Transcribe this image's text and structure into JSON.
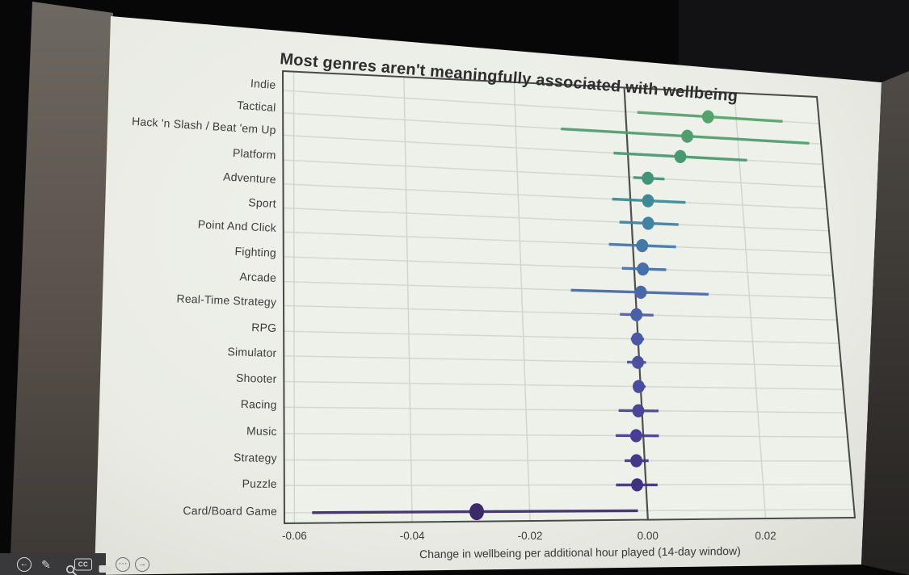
{
  "chart_data": {
    "type": "scatter",
    "style": "forest-dot-interval",
    "orientation": "horizontal",
    "title": "Most genres aren't meaningfully associated with wellbeing",
    "xlabel": "Change in wellbeing per additional hour played (14-day window)",
    "xlim": [
      -0.0614,
      0.0355
    ],
    "grid": true,
    "zero_line": 0,
    "xticks": [
      -0.06,
      -0.04,
      -0.02,
      0.0,
      0.02
    ],
    "xtick_labels": [
      "-0.06",
      "-0.04",
      "-0.02",
      "0.00",
      "0.02"
    ],
    "categories": [
      "Indie",
      "Tactical",
      "Hack 'n Slash / Beat 'em Up",
      "Platform",
      "Adventure",
      "Sport",
      "Point And Click",
      "Fighting",
      "Arcade",
      "Real-Time Strategy",
      "RPG",
      "Simulator",
      "Shooter",
      "Racing",
      "Music",
      "Strategy",
      "Puzzle",
      "Card/Board Game"
    ],
    "series": [
      {
        "name": "estimate",
        "values": [
          0.015,
          0.011,
          0.0095,
          0.0034,
          0.0032,
          0.003,
          0.0017,
          0.0016,
          0.001,
          0.0,
          -0.0001,
          -0.0002,
          -0.0003,
          -0.0006,
          -0.0012,
          -0.0014,
          -0.0015,
          -0.029
        ]
      },
      {
        "name": "ci_low",
        "values": [
          0.0022,
          -0.0118,
          -0.0025,
          0.0008,
          -0.0032,
          -0.0021,
          -0.0042,
          -0.0021,
          -0.0113,
          -0.0029,
          -0.0012,
          -0.0021,
          -0.0013,
          -0.004,
          -0.0047,
          -0.0034,
          -0.0051,
          -0.057
        ]
      },
      {
        "name": "ci_high",
        "values": [
          0.0285,
          0.033,
          0.0215,
          0.0064,
          0.0099,
          0.0084,
          0.0077,
          0.0057,
          0.0129,
          0.003,
          0.0011,
          0.0012,
          0.0009,
          0.0029,
          0.0027,
          0.0007,
          0.002,
          -0.0016
        ]
      }
    ],
    "point_colors": [
      "#56a36a",
      "#4f9e6d",
      "#489970",
      "#3f9478",
      "#3d8997",
      "#3f83a3",
      "#4379a9",
      "#4570aa",
      "#4868a9",
      "#4c5fa6",
      "#4c58a4",
      "#4b51a0",
      "#4a4b9c",
      "#494497",
      "#473d92",
      "#44378a",
      "#41307e",
      "#3a2a68"
    ],
    "colors": {
      "zero_line": "#4f4f4f",
      "panel_border": "#4a4a48",
      "grid": "#d2d5ce",
      "panel_fill": "#eef0ea",
      "text": "#3c3c3c"
    }
  },
  "toolbar": {
    "cc_label": "CC",
    "icons": [
      {
        "name": "back-arrow",
        "type": "arrow-left-circle"
      },
      {
        "name": "pencil",
        "type": "pencil"
      },
      {
        "name": "magnifier",
        "type": "magnifier"
      },
      {
        "name": "closed-captions",
        "type": "cc-badge"
      },
      {
        "name": "video-camera",
        "type": "video-camera"
      },
      {
        "name": "more-options",
        "type": "ellipsis-circle"
      },
      {
        "name": "forward-arrow",
        "type": "arrow-right-circle"
      }
    ]
  }
}
